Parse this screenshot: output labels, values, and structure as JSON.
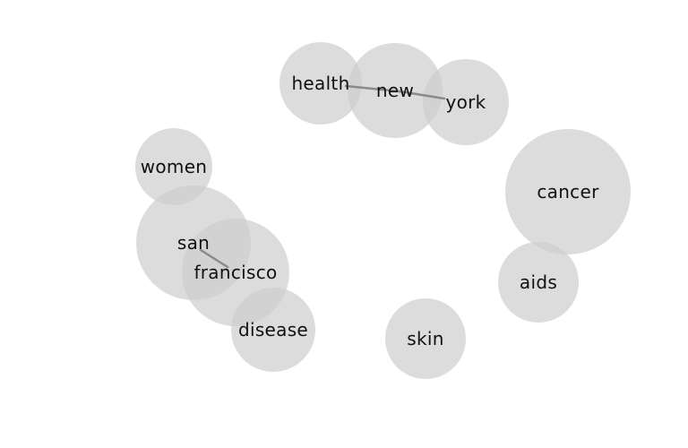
{
  "nodes": [
    {
      "id": "health",
      "label": "health"
    },
    {
      "id": "new",
      "label": "new"
    },
    {
      "id": "york",
      "label": "york"
    },
    {
      "id": "women",
      "label": "women"
    },
    {
      "id": "cancer",
      "label": "cancer"
    },
    {
      "id": "san",
      "label": "san"
    },
    {
      "id": "francisco",
      "label": "francisco"
    },
    {
      "id": "aids",
      "label": "aids"
    },
    {
      "id": "disease",
      "label": "disease"
    },
    {
      "id": "skin",
      "label": "skin"
    }
  ],
  "edges": [
    {
      "from": "health",
      "to": "new"
    },
    {
      "from": "new",
      "to": "york"
    },
    {
      "from": "san",
      "to": "francisco"
    }
  ]
}
